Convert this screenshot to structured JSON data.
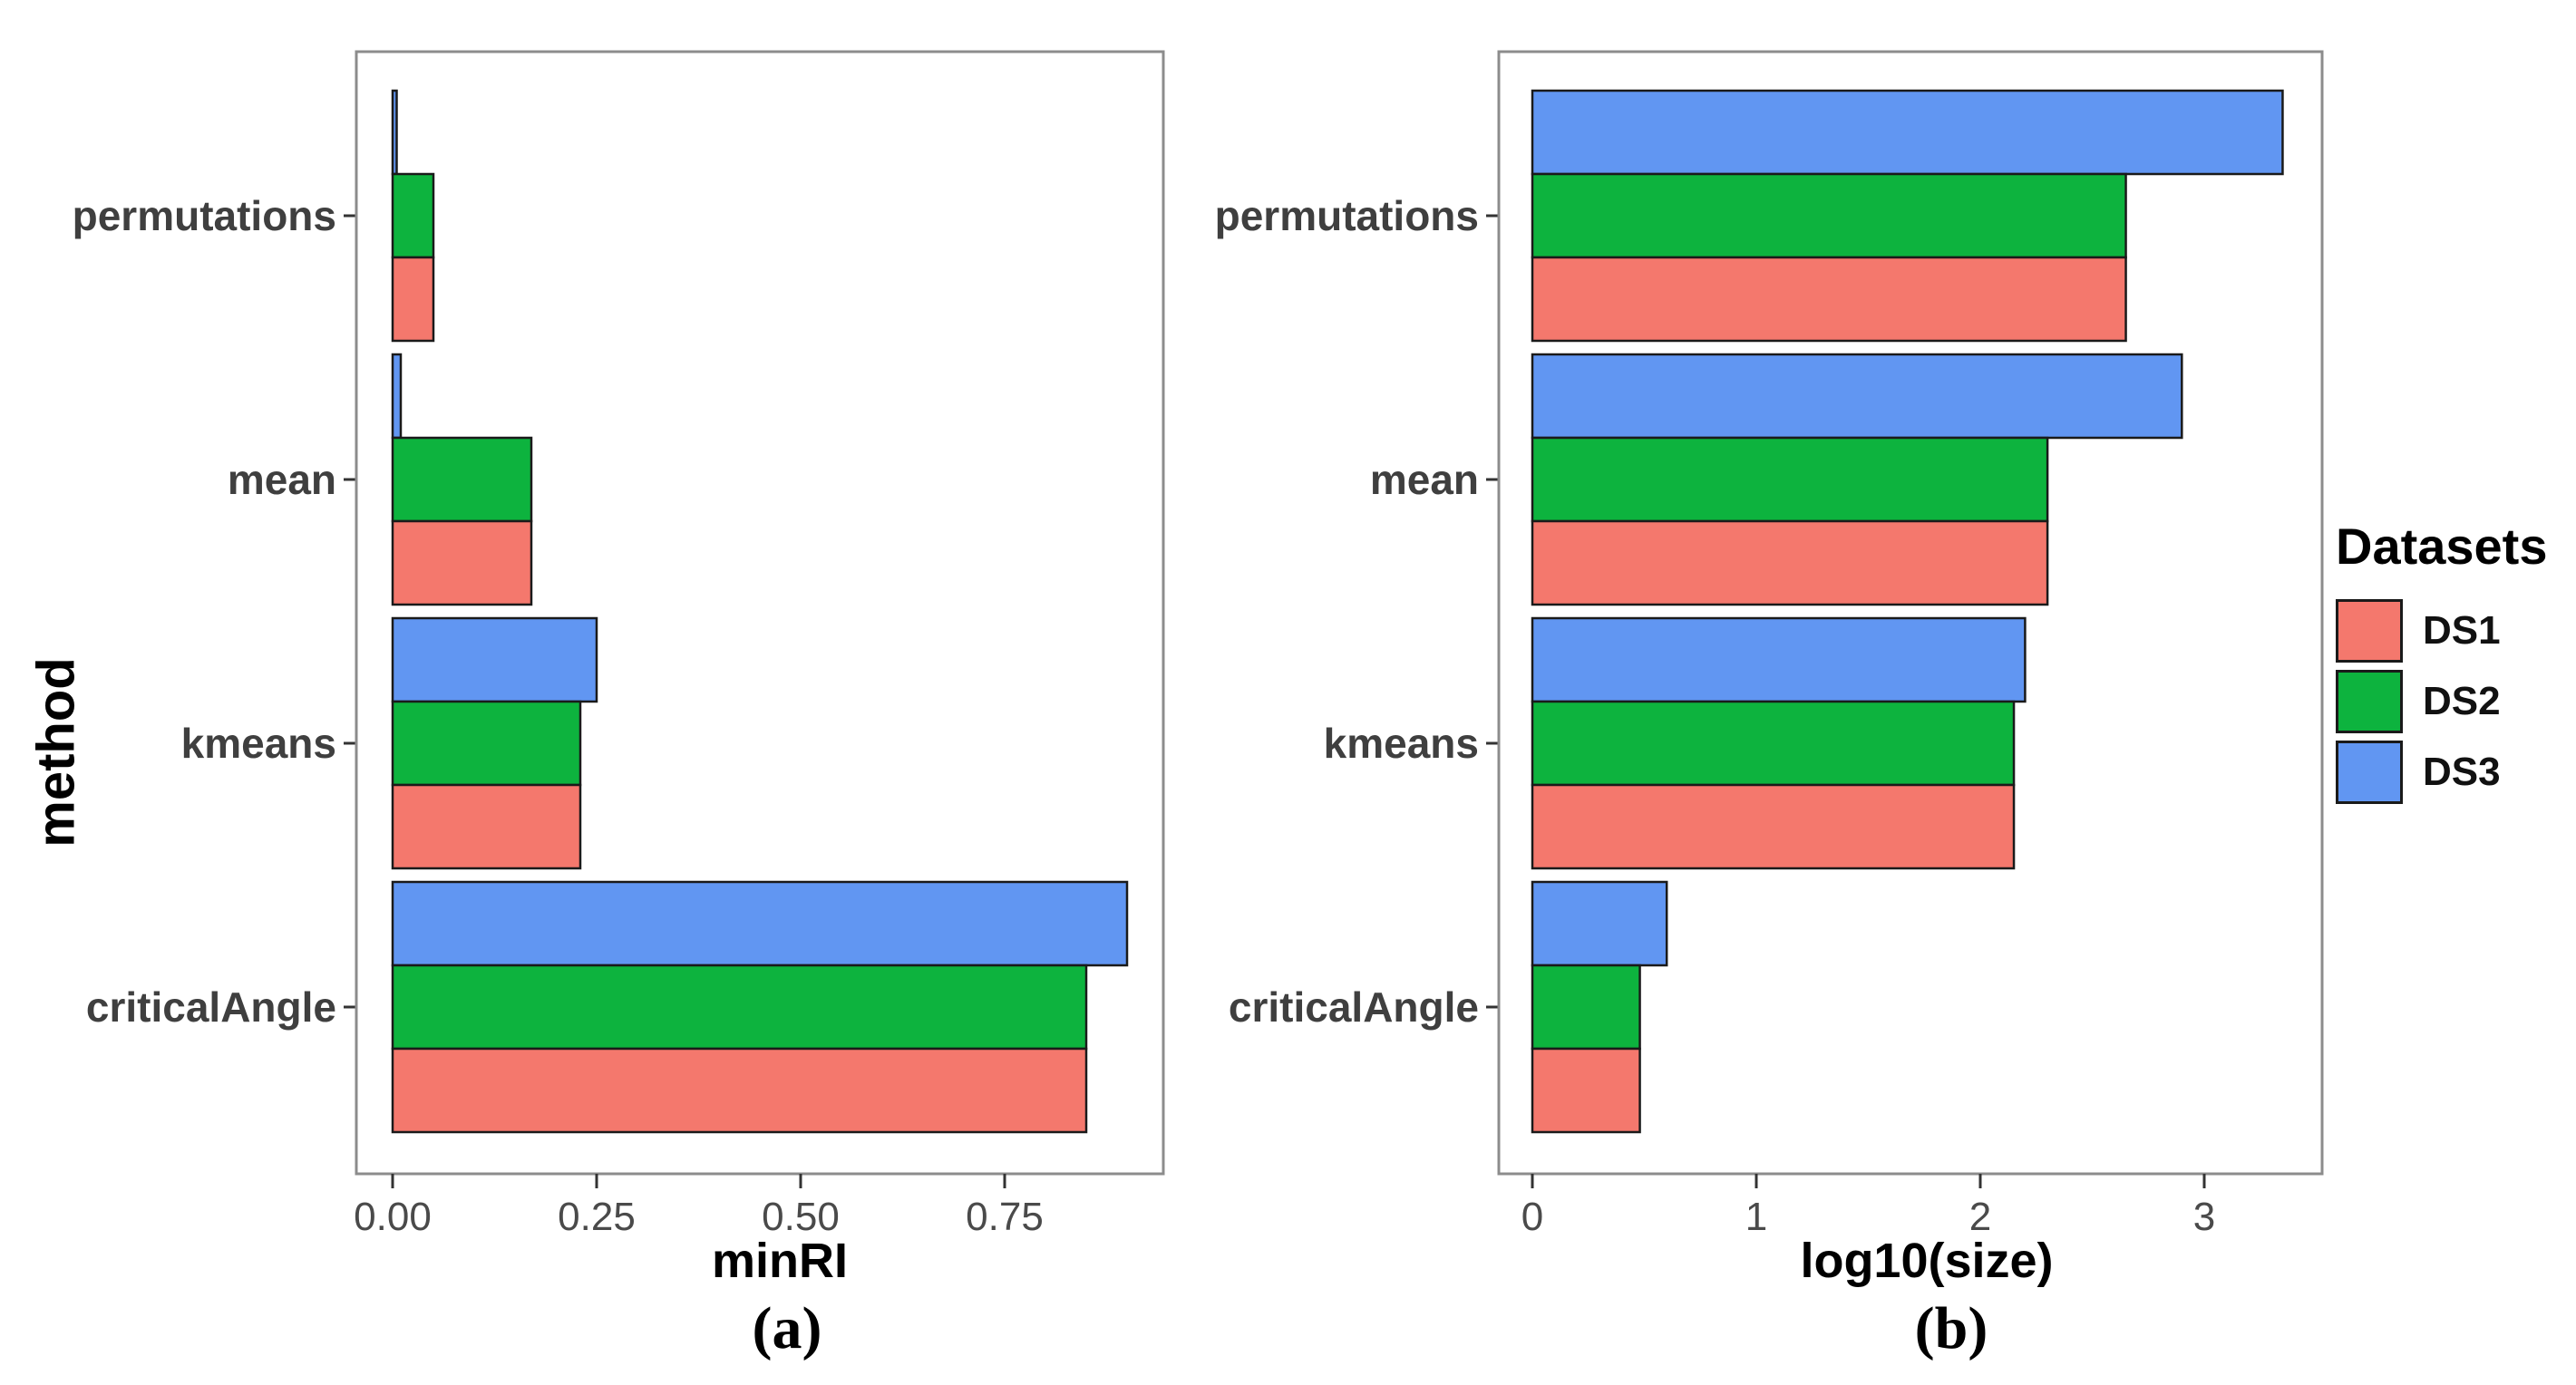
{
  "figure": {
    "background": "#FFFFFF",
    "y_axis_title": "method"
  },
  "style": {
    "panel_border_color": "#8C8C8C",
    "bar_outline_color": "#1A1A1A",
    "tick_color": "#333333",
    "tick_label_color": "#4A4A4A",
    "category_label_color": "#3F3F3F"
  },
  "legend": {
    "title": "Datasets",
    "entries": [
      {
        "label": "DS1",
        "color": "#F4786D"
      },
      {
        "label": "DS2",
        "color": "#0DB33E"
      },
      {
        "label": "DS3",
        "color": "#6196F2"
      }
    ]
  },
  "chart_data": [
    {
      "type": "bar",
      "orientation": "horizontal",
      "caption": "(a)",
      "xlabel": "minRI",
      "ylabel": "method",
      "categories": [
        "permutations",
        "mean",
        "kmeans",
        "criticalAngle"
      ],
      "series": [
        {
          "name": "DS1",
          "color": "#F4786D",
          "values": [
            0.05,
            0.17,
            0.23,
            0.85
          ]
        },
        {
          "name": "DS2",
          "color": "#0DB33E",
          "values": [
            0.05,
            0.17,
            0.23,
            0.85
          ]
        },
        {
          "name": "DS3",
          "color": "#6196F2",
          "values": [
            0.005,
            0.01,
            0.25,
            0.9
          ]
        }
      ],
      "row_order_top_to_bottom": [
        "DS3",
        "DS2",
        "DS1"
      ],
      "x_ticks": [
        "0.00",
        "0.25",
        "0.50",
        "0.75"
      ],
      "x_tick_values": [
        0,
        0.25,
        0.5,
        0.75
      ],
      "xlim": [
        -0.045,
        0.945
      ],
      "grid": false,
      "legend_position": "none"
    },
    {
      "type": "bar",
      "orientation": "horizontal",
      "caption": "(b)",
      "xlabel": "log10(size)",
      "ylabel": "method",
      "categories": [
        "permutations",
        "mean",
        "kmeans",
        "criticalAngle"
      ],
      "series": [
        {
          "name": "DS1",
          "color": "#F4786D",
          "values": [
            2.65,
            2.3,
            2.15,
            0.48
          ]
        },
        {
          "name": "DS2",
          "color": "#0DB33E",
          "values": [
            2.65,
            2.3,
            2.15,
            0.48
          ]
        },
        {
          "name": "DS3",
          "color": "#6196F2",
          "values": [
            3.35,
            2.9,
            2.2,
            0.6
          ]
        }
      ],
      "row_order_top_to_bottom": [
        "DS3",
        "DS2",
        "DS1"
      ],
      "x_ticks": [
        "0",
        "1",
        "2",
        "3"
      ],
      "x_tick_values": [
        0,
        1,
        2,
        3
      ],
      "xlim": [
        -0.15,
        3.53
      ],
      "grid": false,
      "legend_position": "right"
    }
  ]
}
